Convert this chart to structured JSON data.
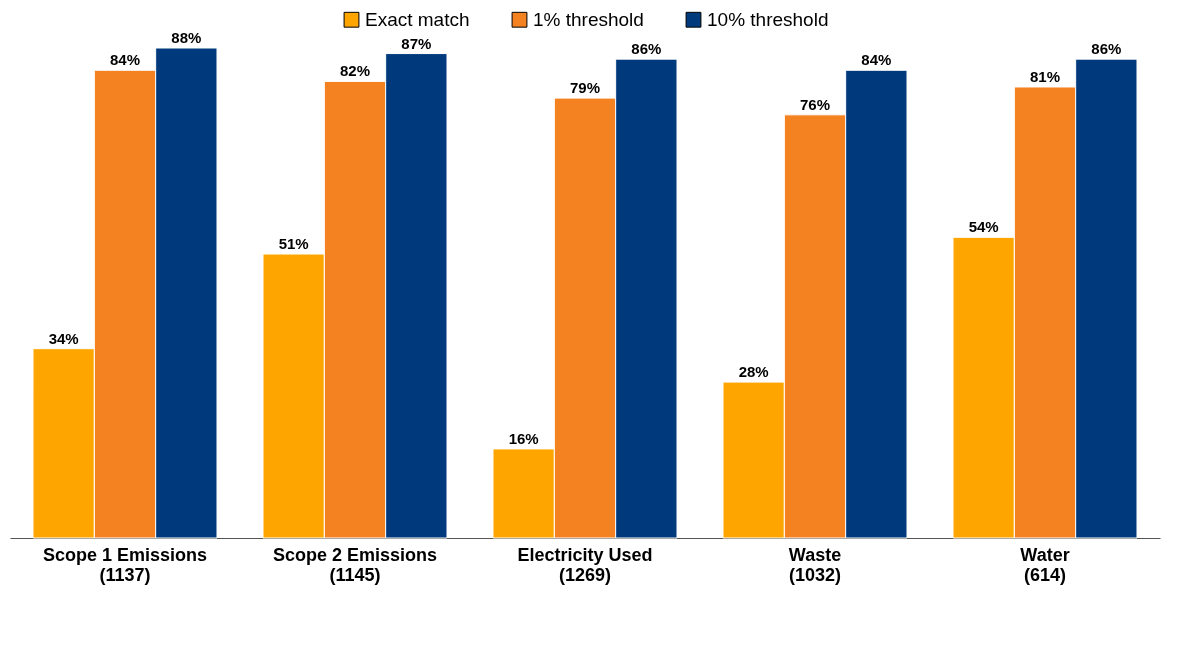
{
  "chart_data": {
    "type": "bar",
    "categories": [
      "Scope 1 Emissions\n(1137)",
      "Scope 2 Emissions\n(1145)",
      "Electricity Used\n(1269)",
      "Waste\n(1032)",
      "Water\n(614)"
    ],
    "series": [
      {
        "name": "Exact match",
        "color": "#ffa500",
        "values": [
          34,
          51,
          16,
          28,
          54
        ],
        "value_labels": [
          "34%",
          "51%",
          "16%",
          "28%",
          "54%"
        ]
      },
      {
        "name": "1% threshold",
        "color": "#f58220",
        "values": [
          84,
          82,
          79,
          76,
          81
        ],
        "value_labels": [
          "84%",
          "82%",
          "79%",
          "76%",
          "81%"
        ]
      },
      {
        "name": "10% threshold",
        "color": "#003a7d",
        "values": [
          88,
          87,
          86,
          84,
          86
        ],
        "value_labels": [
          "88%",
          "87%",
          "86%",
          "84%",
          "86%"
        ]
      }
    ],
    "legend": "top",
    "grid": false
  }
}
